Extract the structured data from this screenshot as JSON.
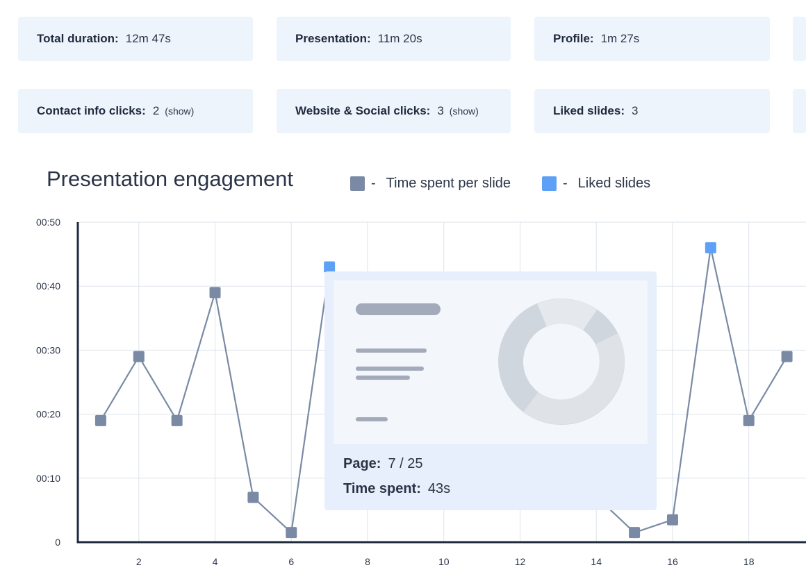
{
  "cards": [
    {
      "label": "Total duration:",
      "value": "12m 47s"
    },
    {
      "label": "Presentation:",
      "value": "11m 20s"
    },
    {
      "label": "Profile:",
      "value": "1m 27s"
    },
    {
      "label": "Contact info clicks:",
      "value": "2",
      "link": "(show)"
    },
    {
      "label": "Website & Social clicks:",
      "value": "3",
      "link": "(show)"
    },
    {
      "label": "Liked slides:",
      "value": "3"
    }
  ],
  "legend": [
    {
      "label": "Time spent per slide",
      "color": "#7a8aa5"
    },
    {
      "label": "Liked slides",
      "color": "#5ea0f5"
    }
  ],
  "legend_dash": "-",
  "tooltip": {
    "page_label": "Page:",
    "page_value": "7 / 25",
    "time_label": "Time spent:",
    "time_value": "43s"
  },
  "chart_data": {
    "type": "line",
    "title": "Presentation engagement",
    "x": [
      1,
      2,
      3,
      4,
      5,
      6,
      7,
      15,
      16,
      17,
      18,
      19
    ],
    "y_seconds": [
      19,
      29,
      19,
      39,
      7,
      1.5,
      43,
      1.5,
      3.5,
      46,
      19,
      29
    ],
    "liked": [
      7,
      17
    ],
    "line_color": "#7a8aa5",
    "liked_color": "#5ea0f5",
    "xlim": [
      0.4,
      19.5
    ],
    "ylim": [
      0,
      50
    ],
    "x_ticks": [
      2,
      4,
      6,
      8,
      10,
      12,
      14,
      16,
      18
    ],
    "y_ticks": [
      {
        "v": 0,
        "label": "0"
      },
      {
        "v": 10,
        "label": "00:10"
      },
      {
        "v": 20,
        "label": "00:20"
      },
      {
        "v": 30,
        "label": "00:30"
      },
      {
        "v": 40,
        "label": "00:40"
      },
      {
        "v": 50,
        "label": "00:50"
      }
    ],
    "grid": true
  }
}
